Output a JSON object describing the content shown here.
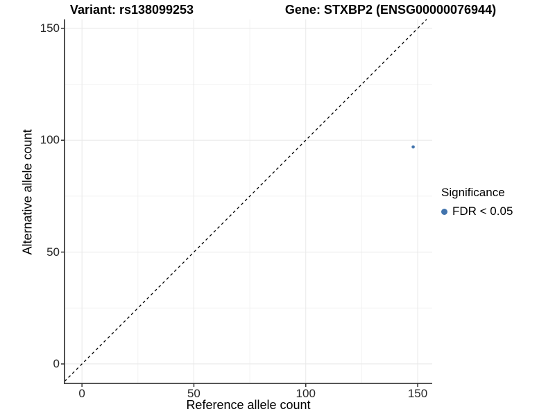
{
  "header": {
    "variant_title": "Variant: rs138099253",
    "gene_title": "Gene: STXBP2 (ENSG00000076944)"
  },
  "axes": {
    "x_label": "Reference allele count",
    "y_label": "Alternative allele count",
    "x_tick_labels": [
      "0",
      "50",
      "100",
      "150"
    ],
    "y_tick_labels": [
      "0",
      "50",
      "100",
      "150"
    ]
  },
  "legend": {
    "title": "Significance",
    "items": [
      {
        "label": "FDR < 0.05",
        "color": "#4274ad"
      }
    ]
  },
  "chart_data": {
    "type": "scatter",
    "title": "Variant: rs138099253   Gene: STXBP2 (ENSG00000076944)",
    "xlabel": "Reference allele count",
    "ylabel": "Alternative allele count",
    "xlim": [
      -7.8,
      156.5
    ],
    "ylim": [
      -8.7,
      154.0
    ],
    "x_ticks": [
      0,
      50,
      100,
      150
    ],
    "y_ticks": [
      0,
      50,
      100,
      150
    ],
    "grid": "major-and-minor",
    "legend_position": "right",
    "reference_line": {
      "type": "identity-y-equals-x",
      "style": "dashed",
      "color": "#000000"
    },
    "series": [
      {
        "name": "FDR < 0.05",
        "color": "#4274ad",
        "points": [
          {
            "x": 148,
            "y": 97
          }
        ]
      }
    ],
    "style": {
      "background": "#ffffff",
      "grid_major_color": "#e8e8e8",
      "grid_minor_color": "#f2f2f2",
      "axis_line_color": "#3f3f3f",
      "tick_color": "#333333",
      "point_radius": 2.3,
      "identity_dash": "4 4"
    }
  }
}
